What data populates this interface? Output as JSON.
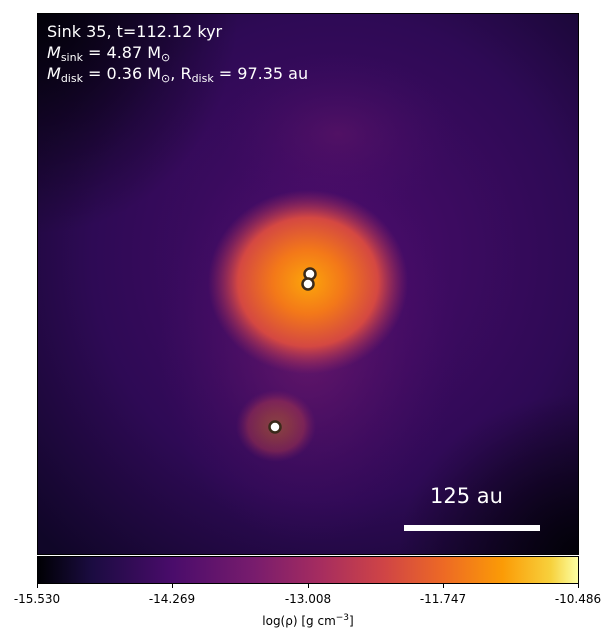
{
  "annotation": {
    "line1": "Sink 35, t=112.12 kyr",
    "sink_label": "M",
    "sink_sub": "sink",
    "sink_value": " = 4.87 M",
    "sun_sub": "⊙",
    "disk_label": "M",
    "disk_sub": "disk",
    "disk_value": " = 0.36 M",
    "radius_label": ", R",
    "radius_sub": "disk",
    "radius_value": " = 97.35 au"
  },
  "scale_bar": {
    "label": "125 au"
  },
  "colorbar": {
    "ticks": [
      "-15.530",
      "-14.269",
      "-13.008",
      "-11.747",
      "-10.486"
    ],
    "label": "log(ρ) [g cm",
    "label_exp": "−3",
    "label_end": "]"
  },
  "colors": {
    "colormap": "inferno",
    "sink_marker_edge": "#3a2a1a",
    "sink_marker_fill": "#ffffff"
  }
}
